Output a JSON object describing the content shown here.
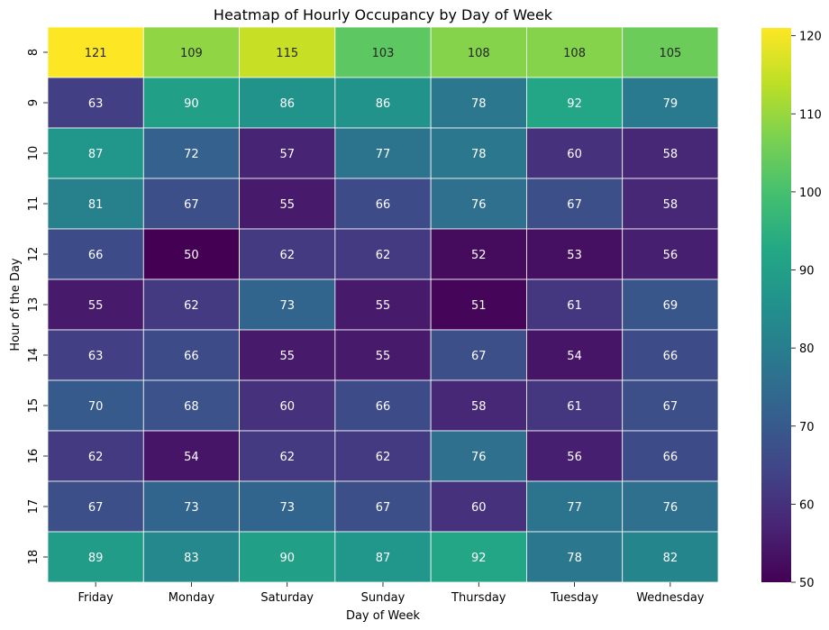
{
  "chart_data": {
    "type": "heatmap",
    "title": "Heatmap of Hourly Occupancy by Day of Week",
    "xlabel": "Day of Week",
    "ylabel": "Hour of the Day",
    "x_categories": [
      "Friday",
      "Monday",
      "Saturday",
      "Sunday",
      "Thursday",
      "Tuesday",
      "Wednesday"
    ],
    "y_categories": [
      "8",
      "9",
      "10",
      "11",
      "12",
      "13",
      "14",
      "15",
      "16",
      "17",
      "18"
    ],
    "values": [
      [
        121,
        109,
        115,
        103,
        108,
        108,
        105
      ],
      [
        63,
        90,
        86,
        86,
        78,
        92,
        79
      ],
      [
        87,
        72,
        57,
        77,
        78,
        60,
        58
      ],
      [
        81,
        67,
        55,
        66,
        76,
        67,
        58
      ],
      [
        66,
        50,
        62,
        62,
        52,
        53,
        56
      ],
      [
        55,
        62,
        73,
        55,
        51,
        61,
        69
      ],
      [
        63,
        66,
        55,
        55,
        67,
        54,
        66
      ],
      [
        70,
        68,
        60,
        66,
        58,
        61,
        67
      ],
      [
        62,
        54,
        62,
        62,
        76,
        56,
        66
      ],
      [
        67,
        73,
        73,
        67,
        60,
        77,
        76
      ],
      [
        89,
        83,
        90,
        87,
        92,
        78,
        82
      ]
    ],
    "colormap": "viridis",
    "vmin": 50,
    "vmax": 121,
    "colorbar_ticks": [
      50,
      60,
      70,
      80,
      90,
      100,
      110,
      120
    ],
    "annotated": true
  }
}
